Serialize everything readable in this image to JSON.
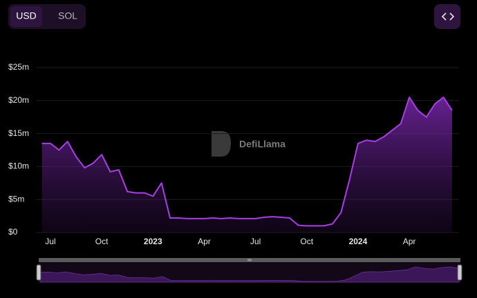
{
  "currency_options": [
    "USD",
    "SOL"
  ],
  "watermark": "DefiLlama",
  "chart_data": {
    "type": "area",
    "categories": [
      null,
      "Jul",
      null,
      null,
      null,
      null,
      null,
      "Oct",
      null,
      null,
      null,
      null,
      null,
      "2023",
      null,
      null,
      null,
      null,
      null,
      "Apr",
      null,
      null,
      null,
      null,
      null,
      "Jul",
      null,
      null,
      null,
      null,
      null,
      "Oct",
      null,
      null,
      null,
      null,
      null,
      "2024",
      null,
      null,
      null,
      null,
      null,
      "Apr",
      null,
      null,
      null,
      null,
      null
    ],
    "values": [
      13.5,
      13.5,
      12.5,
      13.8,
      11.5,
      9.8,
      10.5,
      11.8,
      9.2,
      9.5,
      6.2,
      6.0,
      6.0,
      5.5,
      7.5,
      2.2,
      2.2,
      2.1,
      2.1,
      2.1,
      2.2,
      2.1,
      2.2,
      2.1,
      2.1,
      2.1,
      2.3,
      2.4,
      2.3,
      2.2,
      1.1,
      1.0,
      1.0,
      1.0,
      1.3,
      3.0,
      8.0,
      13.5,
      14.0,
      13.8,
      14.5,
      15.5,
      16.5,
      20.5,
      18.5,
      17.5,
      19.5,
      20.5,
      18.5
    ],
    "color": "#a93ee6",
    "ylim": [
      0,
      25
    ],
    "yticks": [
      {
        "value": 0,
        "label": "$0"
      },
      {
        "value": 5,
        "label": "$5m"
      },
      {
        "value": 10,
        "label": "$10m"
      },
      {
        "value": 15,
        "label": "$15m"
      },
      {
        "value": 20,
        "label": "$20m"
      },
      {
        "value": 25,
        "label": "$25m"
      }
    ],
    "grid": true
  }
}
